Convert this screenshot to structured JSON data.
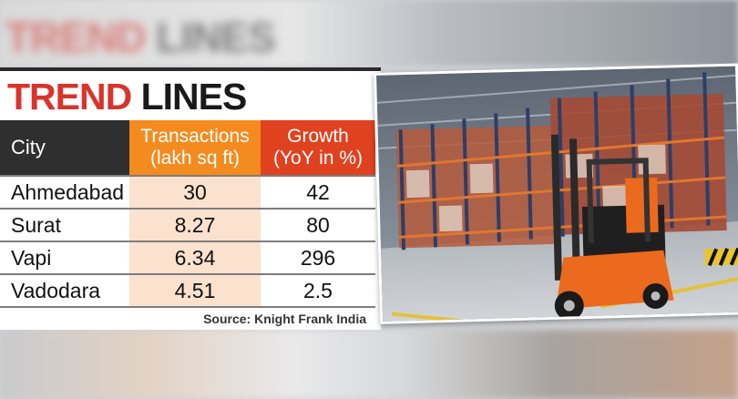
{
  "header": {
    "title_word1": "TREND",
    "title_word2": "LINES"
  },
  "colors": {
    "title_red": "#d8342c",
    "city_header": "#2f2f2f",
    "transactions_header": "#f38b1f",
    "transactions_cells": "#fbe2cf",
    "growth_header": "#e0411f"
  },
  "chart_data": {
    "type": "table",
    "title": "TREND LINES",
    "columns": [
      "City",
      "Transactions (lakh sq ft)",
      "Growth (YoY in %)"
    ],
    "column_header_lines": [
      [
        "City"
      ],
      [
        "Transactions",
        "(lakh sq ft)"
      ],
      [
        "Growth",
        "(YoY in %)"
      ]
    ],
    "rows": [
      {
        "city": "Ahmedabad",
        "transactions": "30",
        "growth": "42"
      },
      {
        "city": "Surat",
        "transactions": "8.27",
        "growth": "80"
      },
      {
        "city": "Vapi",
        "transactions": "6.34",
        "growth": "296"
      },
      {
        "city": "Vadodara",
        "transactions": "4.51",
        "growth": "2.5"
      }
    ],
    "source": "Source: Knight Frank India"
  },
  "photo": {
    "subject": "forklift-in-warehouse"
  }
}
